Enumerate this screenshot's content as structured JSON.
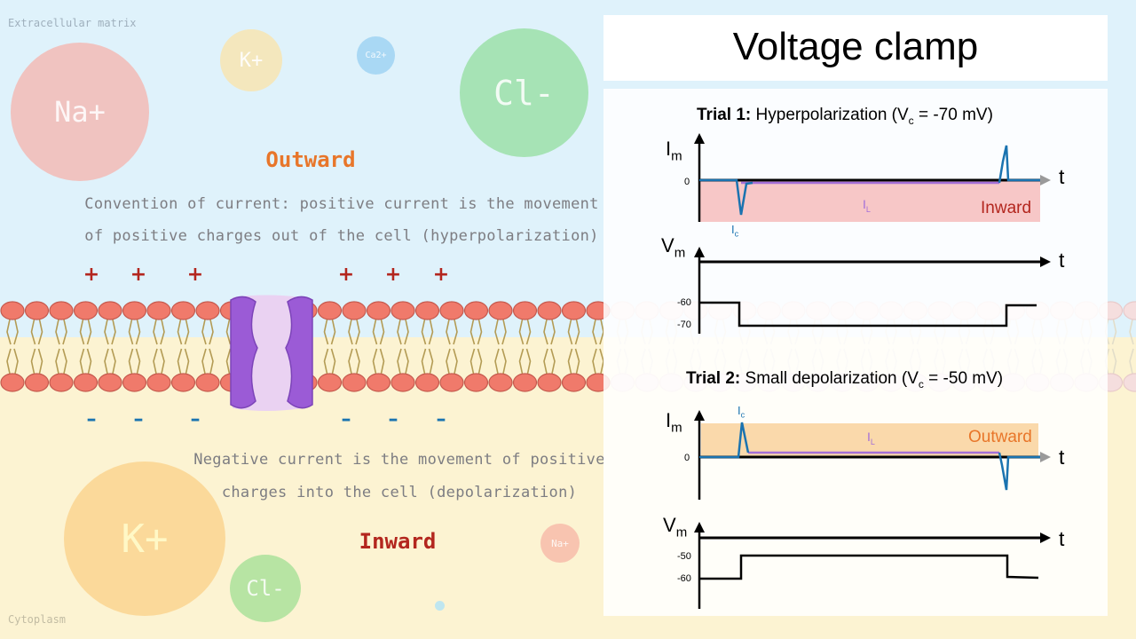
{
  "scene": {
    "extracellular_label": "Extracellular matrix",
    "cytoplasm_label": "Cytoplasm",
    "ions_top": {
      "na": "Na+",
      "k": "K+",
      "ca": "Ca2+",
      "cl": "Cl-"
    },
    "ions_bottom": {
      "k": "K+",
      "cl": "Cl-",
      "na": "Na+"
    },
    "outward_label": "Outward",
    "inward_label": "Inward",
    "convention_line1": "Convention of current: positive current is the movement",
    "convention_line2": "of positive charges out of the cell (hyperpolarization)",
    "negative_line1": "Negative current is the movement of positive",
    "negative_line2": "charges into the cell (depolarization)",
    "plus_sign": "+",
    "minus_sign": "–"
  },
  "panel": {
    "title": "Voltage clamp",
    "trial1": {
      "bold": "Trial 1:",
      "rest": " Hyperpolarization (V",
      "sub": "c",
      "tail": " = -70 mV)"
    },
    "trial2": {
      "bold": "Trial 2:",
      "rest": " Small depolarization (V",
      "sub": "c",
      "tail": " = -50 mV)"
    },
    "im_main": "I",
    "im_sub": "m",
    "vm_main": "V",
    "vm_sub": "m",
    "t_label": "t",
    "zero": "0",
    "ic_main": "I",
    "ic_sub": "c",
    "il_main": "I",
    "il_sub": "L",
    "inward": "Inward",
    "outward": "Outward",
    "v1_high": "-60",
    "v1_low": "-70",
    "v2_high": "-50",
    "v2_low": "-60"
  },
  "colors": {
    "top_bg": "#dff2fb",
    "bottom_bg": "#fcf3d2",
    "inward_fill": "#f7c7c7",
    "outward_fill": "#fad9ab",
    "leak_line": "#a46fd8",
    "capacitive": "#1a73b0",
    "outward_word": "#e8762a",
    "inward_word": "#b3261e"
  },
  "chart_data": [
    {
      "type": "line",
      "title": "Trial 1: Hyperpolarization (Vc = -70 mV) — membrane current",
      "ylabel": "Im",
      "xlabel": "t",
      "series": [
        {
          "name": "Ic",
          "description": "capacitive transient: downward spike at step on, upward spike at step off"
        },
        {
          "name": "IL",
          "description": "leak current, small negative (inward) during step"
        }
      ],
      "region_label": "Inward"
    },
    {
      "type": "line",
      "title": "Trial 1 — membrane voltage",
      "ylabel": "Vm",
      "xlabel": "t",
      "x": [
        0,
        1,
        1,
        8,
        8,
        9
      ],
      "y": [
        -60,
        -60,
        -70,
        -70,
        -60,
        -60
      ]
    },
    {
      "type": "line",
      "title": "Trial 2: Small depolarization (Vc = -50 mV) — membrane current",
      "ylabel": "Im",
      "xlabel": "t",
      "series": [
        {
          "name": "Ic",
          "description": "capacitive transient: upward spike at step on, downward spike at step off"
        },
        {
          "name": "IL",
          "description": "leak current, small positive (outward) during step"
        }
      ],
      "region_label": "Outward"
    },
    {
      "type": "line",
      "title": "Trial 2 — membrane voltage",
      "ylabel": "Vm",
      "xlabel": "t",
      "x": [
        0,
        1,
        1,
        8,
        8,
        9
      ],
      "y": [
        -60,
        -60,
        -50,
        -50,
        -60,
        -60
      ]
    }
  ]
}
